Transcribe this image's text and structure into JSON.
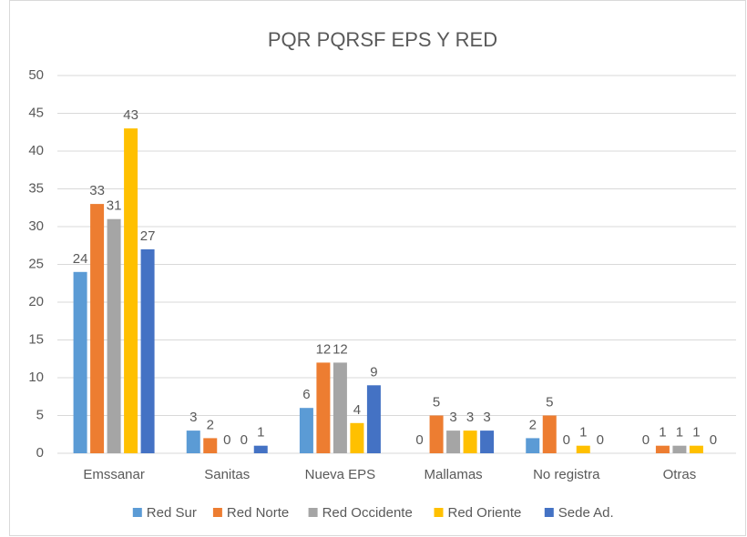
{
  "chart_data": {
    "type": "bar",
    "title": "PQR PQRSF EPS Y RED",
    "categories": [
      "Emssanar",
      "Sanitas",
      "Nueva EPS",
      "Mallamas",
      "No registra",
      "Otras"
    ],
    "series": [
      {
        "name": "Red Sur",
        "color": "#5b9bd5",
        "values": [
          24,
          3,
          6,
          0,
          2,
          0
        ]
      },
      {
        "name": "Red Norte",
        "color": "#ed7d31",
        "values": [
          33,
          2,
          12,
          5,
          5,
          1
        ]
      },
      {
        "name": "Red Occidente",
        "color": "#a5a5a5",
        "values": [
          31,
          0,
          12,
          3,
          0,
          1
        ]
      },
      {
        "name": "Red Oriente",
        "color": "#ffc000",
        "values": [
          43,
          0,
          4,
          3,
          1,
          1
        ]
      },
      {
        "name": "Sede Ad.",
        "color": "#4472c4",
        "values": [
          27,
          1,
          9,
          3,
          0,
          0
        ]
      }
    ],
    "ylim": [
      0,
      50
    ],
    "yticks": [
      0,
      5,
      10,
      15,
      20,
      25,
      30,
      35,
      40,
      45,
      50
    ],
    "grid": true,
    "legend": "bottom"
  }
}
